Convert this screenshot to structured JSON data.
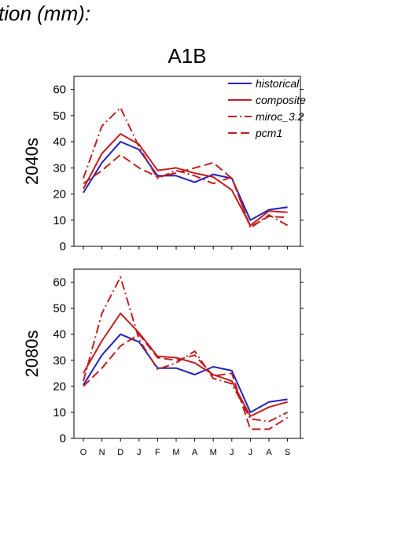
{
  "page": {
    "title": "tion (mm):"
  },
  "chart_data": {
    "type": "line",
    "scenario": "A1B",
    "categories": [
      "O",
      "N",
      "D",
      "J",
      "F",
      "M",
      "A",
      "M",
      "J",
      "J",
      "A",
      "S"
    ],
    "ylim": [
      0,
      65
    ],
    "yticks": [
      0,
      10,
      20,
      30,
      40,
      50,
      60
    ],
    "grid": false,
    "legend_position": "top-right",
    "colors": {
      "blue": "#2222bb",
      "red": "#c02020"
    },
    "legend": [
      {
        "name": "historical",
        "color": "#2222bb",
        "dash": "solid"
      },
      {
        "name": "composite",
        "color": "#c02020",
        "dash": "solid"
      },
      {
        "name": "miroc_3.2",
        "color": "#c02020",
        "dash": "dashdot"
      },
      {
        "name": "pcm1",
        "color": "#c02020",
        "dash": "dashed"
      }
    ],
    "panels": [
      {
        "label": "2040s",
        "series": [
          {
            "name": "historical",
            "values": [
              20.5,
              32,
              40,
              37,
              27,
              27,
              24.5,
              27.5,
              26,
              10,
              14,
              15
            ]
          },
          {
            "name": "composite",
            "values": [
              22,
              35.5,
              43,
              39,
              29,
              30,
              28,
              26.5,
              21.5,
              8,
              13.5,
              13
            ]
          },
          {
            "name": "miroc_3.2",
            "values": [
              26,
              46,
              53,
              38,
              26,
              29,
              27,
              24,
              26.5,
              7,
              12,
              8
            ]
          },
          {
            "name": "pcm1",
            "values": [
              24,
              29,
              35,
              30,
              26.5,
              28,
              30,
              32,
              26,
              7.5,
              11.5,
              11
            ]
          }
        ]
      },
      {
        "label": "2080s",
        "series": [
          {
            "name": "historical",
            "values": [
              20.5,
              32,
              40,
              37,
              27,
              27,
              24.5,
              27.5,
              26,
              10,
              14,
              15
            ]
          },
          {
            "name": "composite",
            "values": [
              25,
              37.5,
              48,
              40.5,
              31.5,
              31,
              29,
              24.5,
              22,
              8.5,
              12,
              14
            ]
          },
          {
            "name": "miroc_3.2",
            "values": [
              22,
              48,
              62,
              38,
              26.5,
              29,
              33.5,
              23,
              21,
              7.5,
              6.5,
              10
            ]
          },
          {
            "name": "pcm1",
            "values": [
              20,
              27,
              35.5,
              40,
              31,
              30,
              32,
              24,
              25,
              3.5,
              3.5,
              8
            ]
          }
        ]
      }
    ]
  }
}
